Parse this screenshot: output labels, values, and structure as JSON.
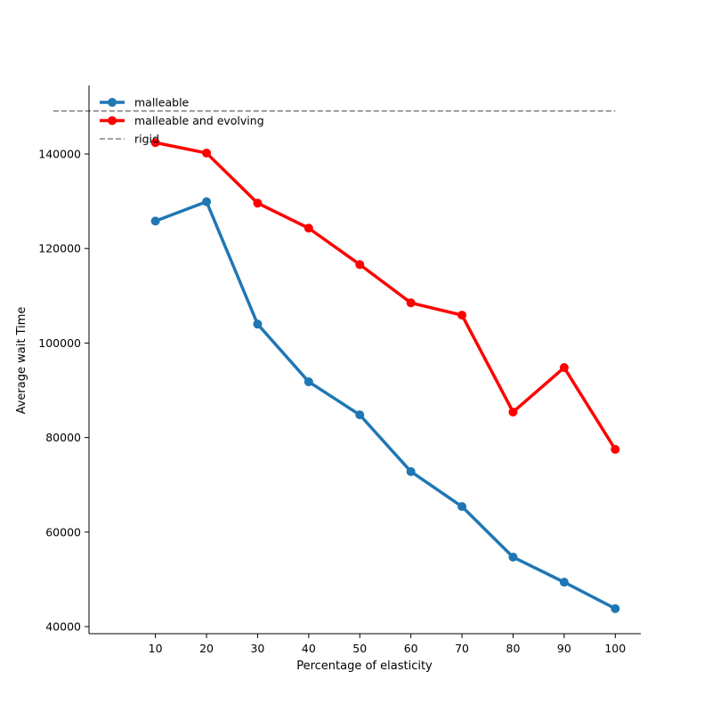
{
  "chart_data": {
    "type": "line",
    "title": "",
    "xlabel": "Percentage of elasticity",
    "ylabel": "Average wait Time",
    "x": [
      10,
      20,
      30,
      40,
      50,
      60,
      70,
      80,
      90,
      100
    ],
    "x_ticks": [
      "10",
      "20",
      "30",
      "40",
      "50",
      "60",
      "70",
      "80",
      "90",
      "100"
    ],
    "y_ticks": [
      "40000",
      "60000",
      "80000",
      "100000",
      "120000",
      "140000"
    ],
    "y_tick_values": [
      40000,
      60000,
      80000,
      100000,
      120000,
      140000
    ],
    "xlim": [
      -3,
      105
    ],
    "ylim": [
      38500,
      154500
    ],
    "legend_position": "top-left",
    "grid": false,
    "series": [
      {
        "name": "malleable",
        "color": "#1f77b4",
        "style": "solid-marker",
        "values": [
          125800,
          129900,
          104000,
          91800,
          84800,
          72800,
          65400,
          54700,
          49400,
          43800
        ]
      },
      {
        "name": "malleable and evolving",
        "color": "#ff0000",
        "style": "solid-marker",
        "values": [
          142400,
          140200,
          129600,
          124300,
          116600,
          108500,
          105900,
          85400,
          94800,
          77500
        ]
      },
      {
        "name": "rigid",
        "color": "#808080",
        "style": "dashed",
        "x_range": [
          -10,
          100
        ],
        "value": 149100
      }
    ]
  }
}
